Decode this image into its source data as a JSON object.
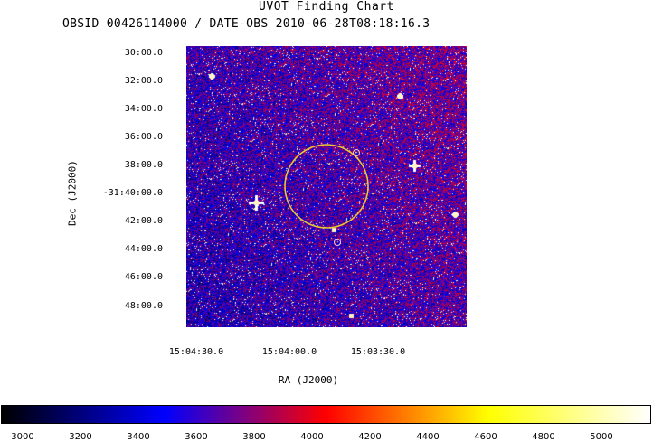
{
  "title": "UVOT Finding Chart",
  "subtitle": "OBSID 00426114000 / DATE-OBS 2010-06-28T08:18:16.3",
  "dec_axis": {
    "label": "Dec (J2000)",
    "ticks": [
      "30:00.0",
      "32:00.0",
      "34:00.0",
      "36:00.0",
      "38:00.0",
      "-31:40:00.0",
      "42:00.0",
      "44:00.0",
      "46:00.0",
      "48:00.0"
    ]
  },
  "ra_axis": {
    "label": "RA (J2000)",
    "ticks": [
      "15:04:30.0",
      "15:04:00.0",
      "15:03:30.0"
    ]
  },
  "colorbar": {
    "ticks": [
      "3000",
      "3200",
      "3400",
      "3600",
      "3800",
      "4000",
      "4200",
      "4400",
      "4600",
      "4800",
      "5000"
    ],
    "colormap": [
      "#000000",
      "#0000ff",
      "#ff0000",
      "#ffff00",
      "#ffffff"
    ]
  },
  "overlay": {
    "large_circle_color": "#e8c830",
    "small_circle_color": "#f0d0d0"
  }
}
